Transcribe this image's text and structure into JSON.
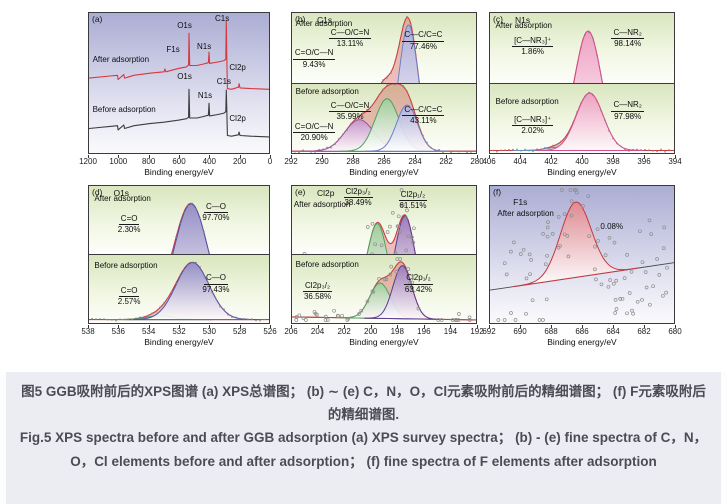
{
  "caption": {
    "zh": "图5 GGB吸附前后的XPS图谱 (a) XPS总谱图； (b) ∼ (e) C，N，O，Cl元素吸附前后的精细谱图； (f) F元素吸附后的精细谱图.",
    "en": "Fig.5 XPS spectra before and after GGB adsorption (a) XPS survey spectra； (b) - (e) fine spectra of C，N，O，Cl elements before and after adsorption； (f) fine spectra of F elements after adsorption"
  },
  "colors": {
    "envelope": "#cc3b40",
    "envelope_fill": "rgba(206,58,62,0.32)",
    "baseline": "#4a4a4a",
    "scatter_dot": "#8f8f8f",
    "trace_dot": "#858585",
    "survey_after": "#d4393e",
    "survey_before": "#3c3c3c",
    "caption_bg": "#ecedf3",
    "caption_text": "#4c4c55",
    "bg_green_top": "#d9e6bf",
    "bg_purple_top": "#abadd3",
    "peaks": {
      "purple": {
        "stroke": "#9a50a4",
        "fill": "#c493ce"
      },
      "green": {
        "stroke": "#50a060",
        "fill": "#9bce9b"
      },
      "blue": {
        "stroke": "#707fc5",
        "fill": "#a9aede"
      },
      "blueviolet": {
        "stroke": "#4f55a8",
        "fill": "#8f8cc9"
      },
      "pink": {
        "stroke": "#d4508e",
        "fill": "#ef9fc5"
      },
      "violet": {
        "stroke": "#5a3c92",
        "fill": "#9878bb"
      },
      "skyblue": {
        "stroke": "#6090c0",
        "fill": "#aac8e4"
      },
      "red": {
        "stroke": "#c23940",
        "fill": "#e2868b"
      }
    }
  },
  "chart_data": [
    {
      "id": "a",
      "tag": "(a)",
      "title": "",
      "type": "line",
      "bg": "purple",
      "x_max": 1200,
      "x_min": 0,
      "ticks": [
        1200,
        1000,
        800,
        600,
        400,
        200,
        0
      ],
      "xlabel": "Binding energy/eV",
      "curves": [
        {
          "name": "After adsorption",
          "color": "#d4393e",
          "points": [
            [
              1200,
              0.465
            ],
            [
              1060,
              0.45
            ],
            [
              1010,
              0.445
            ],
            [
              1006,
              0.475
            ],
            [
              968,
              0.44
            ],
            [
              963,
              0.465
            ],
            [
              900,
              0.445
            ],
            [
              795,
              0.43
            ],
            [
              700,
              0.42
            ],
            [
              694,
              0.4
            ],
            [
              688,
              0.42
            ],
            [
              600,
              0.395
            ],
            [
              550,
              0.385
            ],
            [
              536,
              0.37
            ],
            [
              533,
              0.145
            ],
            [
              529,
              0.375
            ],
            [
              480,
              0.375
            ],
            [
              440,
              0.365
            ],
            [
              404,
              0.355
            ],
            [
              400,
              0.28
            ],
            [
              396,
              0.36
            ],
            [
              340,
              0.35
            ],
            [
              300,
              0.34
            ],
            [
              288,
              0.33
            ],
            [
              285,
              0.055
            ],
            [
              281,
              0.31
            ],
            [
              277,
              0.54
            ],
            [
              250,
              0.545
            ],
            [
              203,
              0.53
            ],
            [
              199,
              0.505
            ],
            [
              193,
              0.535
            ],
            [
              120,
              0.54
            ],
            [
              0,
              0.545
            ]
          ]
        },
        {
          "name": "Before adsorption",
          "color": "#3c3c3c",
          "points": [
            [
              1200,
              0.825
            ],
            [
              1060,
              0.81
            ],
            [
              1010,
              0.805
            ],
            [
              1006,
              0.835
            ],
            [
              968,
              0.8
            ],
            [
              963,
              0.825
            ],
            [
              900,
              0.805
            ],
            [
              795,
              0.79
            ],
            [
              700,
              0.78
            ],
            [
              600,
              0.765
            ],
            [
              550,
              0.755
            ],
            [
              536,
              0.745
            ],
            [
              533,
              0.545
            ],
            [
              529,
              0.75
            ],
            [
              480,
              0.75
            ],
            [
              440,
              0.74
            ],
            [
              404,
              0.73
            ],
            [
              400,
              0.645
            ],
            [
              396,
              0.735
            ],
            [
              340,
              0.725
            ],
            [
              300,
              0.715
            ],
            [
              288,
              0.705
            ],
            [
              285,
              0.55
            ],
            [
              281,
              0.69
            ],
            [
              277,
              0.875
            ],
            [
              250,
              0.88
            ],
            [
              203,
              0.87
            ],
            [
              199,
              0.85
            ],
            [
              193,
              0.875
            ],
            [
              120,
              0.88
            ],
            [
              0,
              0.885
            ]
          ]
        }
      ],
      "labels": [
        {
          "l1": "After adsorption",
          "x": 2,
          "y": 30
        },
        {
          "l1": "F1s",
          "x": 43,
          "y": 23
        },
        {
          "l1": "O1s",
          "x": 49,
          "y": 6
        },
        {
          "l1": "N1s",
          "x": 60,
          "y": 21
        },
        {
          "l1": "C1s",
          "x": 70,
          "y": 1
        },
        {
          "l1": "Cl2p",
          "x": 78,
          "y": 36
        },
        {
          "l1": "O1s",
          "x": 49,
          "y": 42
        },
        {
          "l1": "N1s",
          "x": 60.5,
          "y": 56
        },
        {
          "l1": "C1s",
          "x": 71,
          "y": 46
        },
        {
          "l1": "Before adsorption",
          "x": 2,
          "y": 66
        },
        {
          "l1": "Cl2p",
          "x": 78,
          "y": 72
        }
      ]
    },
    {
      "id": "b",
      "tag": "(b)",
      "title": "C1s",
      "type": "area",
      "bg": "green",
      "x_max": 292,
      "x_min": 280,
      "ticks": [
        292,
        290,
        288,
        286,
        284,
        282,
        280
      ],
      "xlabel": "Binding energy/eV",
      "subpanels": [
        {
          "name": "After adsorption",
          "name_pos": [
            2,
            9
          ],
          "baseline": [
            0.965,
            0.965
          ],
          "envelope": true,
          "dots": true,
          "peaks": [
            {
              "c": 287.7,
              "s": 0.85,
              "h": 0.3,
              "color": "purple"
            },
            {
              "c": 285.9,
              "s": 0.72,
              "h": 0.42,
              "color": "green"
            },
            {
              "c": 284.4,
              "s": 0.62,
              "h": 0.88,
              "color": "blue"
            }
          ],
          "annotations": [
            {
              "l1": "C—O/C=N",
              "l2": "13.11%",
              "x": 20,
              "y": 21,
              "u": true
            },
            {
              "l1": "C=O/C—N",
              "l2": "9.43%",
              "x": 0.5,
              "y": 51,
              "u": true
            },
            {
              "l1": "C—C/C=C",
              "l2": "77.46%",
              "x": 60,
              "y": 25,
              "u": true
            }
          ]
        },
        {
          "name": "Before adsorption",
          "name_pos": [
            2,
            5
          ],
          "baseline": [
            0.96,
            0.96
          ],
          "envelope": true,
          "dots": true,
          "peaks": [
            {
              "c": 287.6,
              "s": 0.95,
              "h": 0.45,
              "color": "purple"
            },
            {
              "c": 285.8,
              "s": 0.78,
              "h": 0.75,
              "color": "green"
            },
            {
              "c": 284.5,
              "s": 0.68,
              "h": 0.66,
              "color": "blue"
            }
          ],
          "annotations": [
            {
              "l1": "C—O/C=N",
              "l2": "35.99%",
              "x": 20,
              "y": 25,
              "u": true
            },
            {
              "l1": "C=O/C—N",
              "l2": "20.90%",
              "x": 0.5,
              "y": 55,
              "u": true
            },
            {
              "l1": "C—C/C=C",
              "l2": "43.11%",
              "x": 60,
              "y": 31,
              "u": true
            }
          ]
        }
      ]
    },
    {
      "id": "c",
      "tag": "(c)",
      "title": "N1s",
      "type": "area",
      "bg": "green",
      "x_max": 406,
      "x_min": 394,
      "ticks": [
        406,
        404,
        402,
        400,
        398,
        396,
        394
      ],
      "xlabel": "Binding energy/eV",
      "subpanels": [
        {
          "name": "After adsorption",
          "name_pos": [
            3,
            11
          ],
          "baseline": [
            0.95,
            0.95
          ],
          "envelope": true,
          "dots": true,
          "peaks": [
            {
              "c": 401.8,
              "s": 0.7,
              "h": 0.04,
              "color": "skyblue"
            },
            {
              "c": 399.6,
              "s": 0.85,
              "h": 0.82,
              "color": "pink"
            }
          ],
          "annotations": [
            {
              "l1": "[C—NR₃]⁺",
              "l2": "1.86%",
              "x": 12,
              "y": 33,
              "u": true
            },
            {
              "l1": "C—NR₂",
              "l2": "98.14%",
              "x": 66,
              "y": 21,
              "u": true
            }
          ]
        },
        {
          "name": "Before adsorption",
          "name_pos": [
            3,
            19
          ],
          "baseline": [
            0.95,
            0.95
          ],
          "envelope": true,
          "dots": true,
          "peaks": [
            {
              "c": 401.7,
              "s": 0.7,
              "h": 0.045,
              "color": "skyblue"
            },
            {
              "c": 399.5,
              "s": 0.88,
              "h": 0.82,
              "color": "pink"
            }
          ],
          "annotations": [
            {
              "l1": "[C—NR₃]⁺",
              "l2": "2.02%",
              "x": 12,
              "y": 45,
              "u": true
            },
            {
              "l1": "C—NR₂",
              "l2": "97.98%",
              "x": 66,
              "y": 24,
              "u": true
            }
          ]
        }
      ]
    },
    {
      "id": "d",
      "tag": "(d)",
      "title": "O1s",
      "type": "area",
      "bg": "green",
      "x_max": 538,
      "x_min": 526,
      "ticks": [
        538,
        536,
        534,
        532,
        530,
        528,
        526
      ],
      "xlabel": "Binding energy/eV",
      "subpanels": [
        {
          "name": "After adsorption",
          "name_pos": [
            3,
            12
          ],
          "baseline": [
            0.95,
            0.95
          ],
          "envelope": true,
          "dots": true,
          "peaks": [
            {
              "c": 533.3,
              "s": 0.9,
              "h": 0.05,
              "color": "green"
            },
            {
              "c": 531.2,
              "s": 1.12,
              "h": 0.82,
              "color": "blueviolet"
            }
          ],
          "annotations": [
            {
              "l1": "C=O",
              "l2": "2.30%",
              "x": 16,
              "y": 41,
              "u": true
            },
            {
              "l1": "C—O",
              "l2": "97.70%",
              "x": 63,
              "y": 23,
              "u": true
            }
          ]
        },
        {
          "name": "Before adsorption",
          "name_pos": [
            3,
            9
          ],
          "baseline": [
            0.95,
            0.95
          ],
          "envelope": true,
          "dots": true,
          "peaks": [
            {
              "c": 533.3,
              "s": 0.9,
              "h": 0.055,
              "color": "green"
            },
            {
              "c": 531.1,
              "s": 1.1,
              "h": 0.84,
              "color": "blueviolet"
            }
          ],
          "annotations": [
            {
              "l1": "C=O",
              "l2": "2.57%",
              "x": 16,
              "y": 45,
              "u": true
            },
            {
              "l1": "C—O",
              "l2": "97.43%",
              "x": 63,
              "y": 27,
              "u": true
            }
          ]
        }
      ]
    },
    {
      "id": "e",
      "tag": "(e)",
      "title": "Cl2p",
      "type": "area",
      "bg": "green",
      "x_max": 206,
      "x_min": 192,
      "ticks": [
        206,
        204,
        202,
        200,
        198,
        196,
        194,
        192
      ],
      "xlabel": "Binding energy/eV",
      "subpanels": [
        {
          "name": "After adsorption",
          "name_pos": [
            1,
            20
          ],
          "baseline": [
            0.72,
            0.88
          ],
          "envelope": true,
          "scatter": {
            "n": 95,
            "spread": 0.13
          },
          "peaks": [
            {
              "c": 199.5,
              "s": 0.72,
              "h": 0.52,
              "color": "green"
            },
            {
              "c": 197.4,
              "s": 0.72,
              "h": 0.6,
              "color": "violet"
            }
          ],
          "annotations": [
            {
              "l1": "Cl2p₃/₂",
              "l2": "38.49%",
              "x": 28,
              "y": 1,
              "u": true
            },
            {
              "l1": "Cl2p₁/₂",
              "l2": "61.51%",
              "x": 58,
              "y": 6,
              "u": true
            }
          ]
        },
        {
          "name": "Before adsorption",
          "name_pos": [
            2,
            7
          ],
          "baseline": [
            0.91,
            0.955
          ],
          "envelope": true,
          "scatter": {
            "n": 45,
            "spread": 0.05
          },
          "peaks": [
            {
              "c": 199.3,
              "s": 0.78,
              "h": 0.52,
              "color": "green"
            },
            {
              "c": 197.6,
              "s": 0.72,
              "h": 0.78,
              "color": "violet"
            }
          ],
          "annotations": [
            {
              "l1": "Cl2p₃/₂",
              "l2": "36.58%",
              "x": 6,
              "y": 38,
              "u": true
            },
            {
              "l1": "Cl2p₁/₂",
              "l2": "63.42%",
              "x": 61,
              "y": 27,
              "u": true
            }
          ]
        }
      ]
    },
    {
      "id": "f",
      "tag": "(f)",
      "title": "F1s",
      "type": "area",
      "bg": "purple",
      "x_max": 692,
      "x_min": 680,
      "ticks": [
        692,
        690,
        688,
        686,
        684,
        682,
        680
      ],
      "xlabel": "Binding energy/eV",
      "subpanels": [
        {
          "name": "After adsorption",
          "name_pos": [
            4,
            17
          ],
          "baseline": [
            0.76,
            0.56
          ],
          "envelope": false,
          "scatter": {
            "n": 85,
            "spread": 0.17
          },
          "peaks": [
            {
              "c": 686.4,
              "s": 1.0,
              "h": 0.55,
              "color": "red"
            }
          ],
          "annotations": [
            {
              "l1": "0.08%",
              "x": 60,
              "y": 26,
              "u": false
            }
          ]
        }
      ]
    }
  ]
}
